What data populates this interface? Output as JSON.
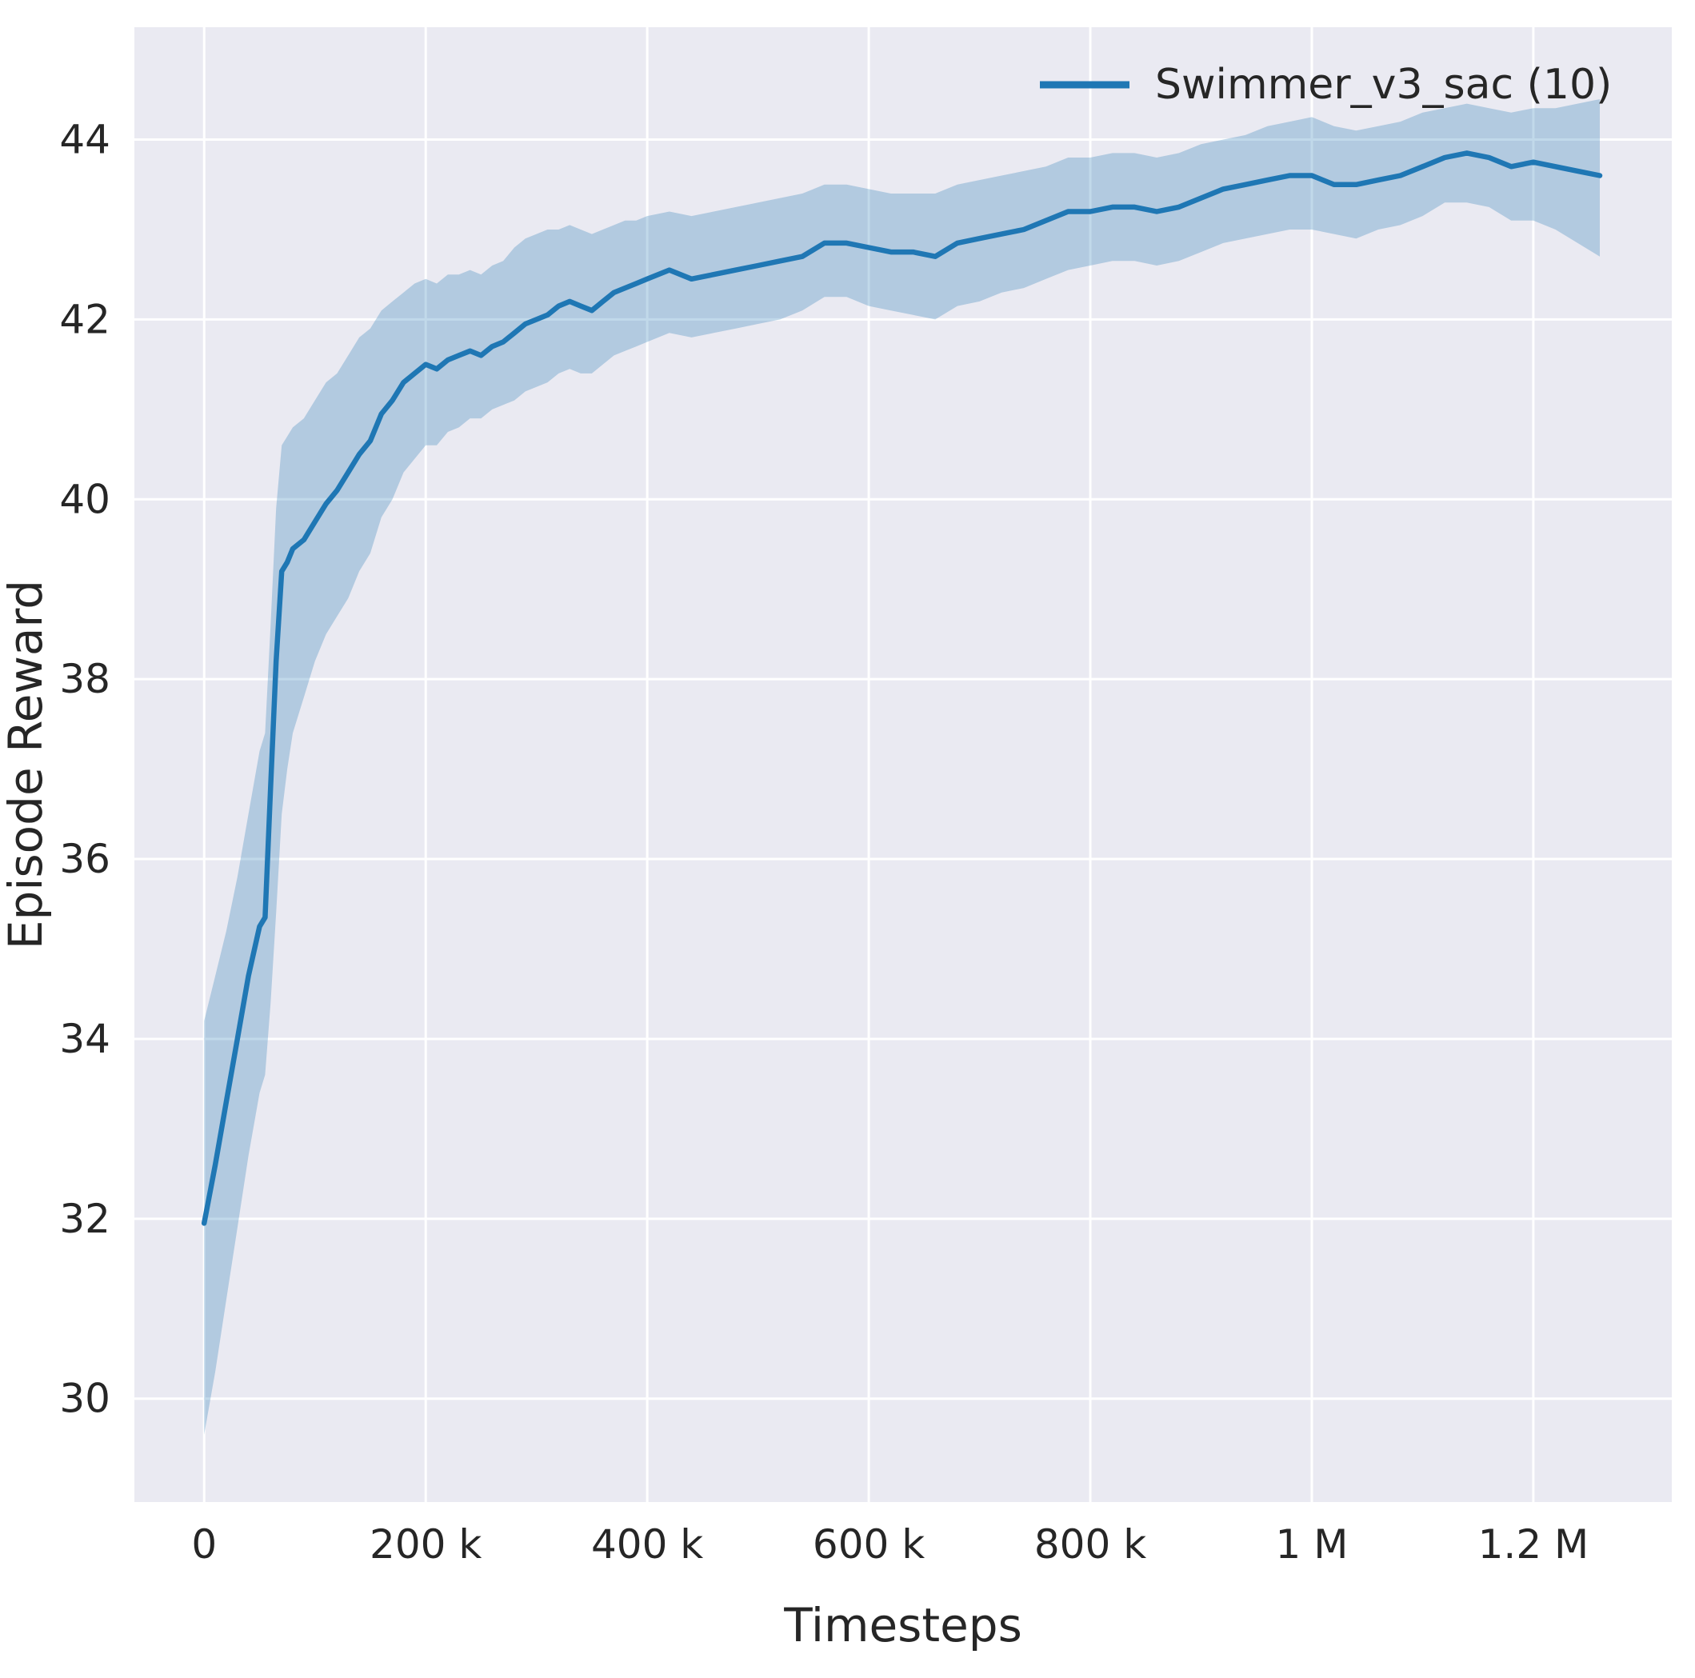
{
  "figure": {
    "background": "#ffffff"
  },
  "chart_data": {
    "type": "line",
    "title": "",
    "xlabel": "Timesteps",
    "ylabel": "Episode Reward",
    "legend_label": "Swimmer_v3_sac (10)",
    "legend_position": "upper right",
    "grid": true,
    "background": "#eaeaf2",
    "grid_color": "#ffffff",
    "line_color": "#1f77b4",
    "band_color": "#1f77b4",
    "band_opacity": 0.28,
    "tick_color": "#262626",
    "xlim": [
      -63000,
      1325000
    ],
    "ylim": [
      28.85,
      45.25
    ],
    "xticks": [
      {
        "value": 0,
        "label": "0"
      },
      {
        "value": 200000,
        "label": "200 k"
      },
      {
        "value": 400000,
        "label": "400 k"
      },
      {
        "value": 600000,
        "label": "600 k"
      },
      {
        "value": 800000,
        "label": "800 k"
      },
      {
        "value": 1000000,
        "label": "1 M"
      },
      {
        "value": 1200000,
        "label": "1.2 M"
      }
    ],
    "yticks": [
      {
        "value": 30,
        "label": "30"
      },
      {
        "value": 32,
        "label": "32"
      },
      {
        "value": 34,
        "label": "34"
      },
      {
        "value": 36,
        "label": "36"
      },
      {
        "value": 38,
        "label": "38"
      },
      {
        "value": 40,
        "label": "40"
      },
      {
        "value": 42,
        "label": "42"
      },
      {
        "value": 44,
        "label": "44"
      }
    ],
    "series": [
      {
        "name": "Swimmer_v3_sac (10)",
        "x": [
          0,
          10000,
          20000,
          30000,
          40000,
          50000,
          55000,
          60000,
          65000,
          70000,
          75000,
          80000,
          90000,
          100000,
          110000,
          120000,
          130000,
          140000,
          150000,
          160000,
          170000,
          180000,
          190000,
          200000,
          210000,
          220000,
          230000,
          240000,
          250000,
          260000,
          270000,
          280000,
          290000,
          300000,
          310000,
          320000,
          330000,
          340000,
          350000,
          360000,
          370000,
          380000,
          390000,
          400000,
          420000,
          440000,
          460000,
          480000,
          500000,
          520000,
          540000,
          560000,
          580000,
          600000,
          620000,
          640000,
          660000,
          680000,
          700000,
          720000,
          740000,
          760000,
          780000,
          800000,
          820000,
          840000,
          860000,
          880000,
          900000,
          920000,
          940000,
          960000,
          980000,
          1000000,
          1020000,
          1040000,
          1060000,
          1080000,
          1100000,
          1120000,
          1140000,
          1160000,
          1180000,
          1200000,
          1220000,
          1240000,
          1260000
        ],
        "mean": [
          31.95,
          32.6,
          33.3,
          34.0,
          34.7,
          35.25,
          35.35,
          36.8,
          38.2,
          39.2,
          39.3,
          39.45,
          39.55,
          39.75,
          39.95,
          40.1,
          40.3,
          40.5,
          40.65,
          40.95,
          41.1,
          41.3,
          41.4,
          41.5,
          41.45,
          41.55,
          41.6,
          41.65,
          41.6,
          41.7,
          41.75,
          41.85,
          41.95,
          42.0,
          42.05,
          42.15,
          42.2,
          42.15,
          42.1,
          42.2,
          42.3,
          42.35,
          42.4,
          42.45,
          42.55,
          42.45,
          42.5,
          42.55,
          42.6,
          42.65,
          42.7,
          42.85,
          42.85,
          42.8,
          42.75,
          42.75,
          42.7,
          42.85,
          42.9,
          42.95,
          43.0,
          43.1,
          43.2,
          43.2,
          43.25,
          43.25,
          43.2,
          43.25,
          43.35,
          43.45,
          43.5,
          43.55,
          43.6,
          43.6,
          43.5,
          43.5,
          43.55,
          43.6,
          43.7,
          43.8,
          43.85,
          43.8,
          43.7,
          43.75,
          43.7,
          43.65,
          43.6
        ],
        "band_lower": [
          29.6,
          30.3,
          31.1,
          31.9,
          32.7,
          33.4,
          33.6,
          34.4,
          35.4,
          36.5,
          37.0,
          37.4,
          37.8,
          38.2,
          38.5,
          38.7,
          38.9,
          39.2,
          39.4,
          39.8,
          40.0,
          40.3,
          40.45,
          40.6,
          40.6,
          40.75,
          40.8,
          40.9,
          40.9,
          41.0,
          41.05,
          41.1,
          41.2,
          41.25,
          41.3,
          41.4,
          41.45,
          41.4,
          41.4,
          41.5,
          41.6,
          41.65,
          41.7,
          41.75,
          41.85,
          41.8,
          41.85,
          41.9,
          41.95,
          42.0,
          42.1,
          42.25,
          42.25,
          42.15,
          42.1,
          42.05,
          42.0,
          42.15,
          42.2,
          42.3,
          42.35,
          42.45,
          42.55,
          42.6,
          42.65,
          42.65,
          42.6,
          42.65,
          42.75,
          42.85,
          42.9,
          42.95,
          43.0,
          43.0,
          42.95,
          42.9,
          43.0,
          43.05,
          43.15,
          43.3,
          43.3,
          43.25,
          43.1,
          43.1,
          43.0,
          42.85,
          42.7
        ],
        "band_upper": [
          34.2,
          34.7,
          35.2,
          35.8,
          36.5,
          37.2,
          37.4,
          38.6,
          39.9,
          40.6,
          40.7,
          40.8,
          40.9,
          41.1,
          41.3,
          41.4,
          41.6,
          41.8,
          41.9,
          42.1,
          42.2,
          42.3,
          42.4,
          42.45,
          42.4,
          42.5,
          42.5,
          42.55,
          42.5,
          42.6,
          42.65,
          42.8,
          42.9,
          42.95,
          43.0,
          43.0,
          43.05,
          43.0,
          42.95,
          43.0,
          43.05,
          43.1,
          43.1,
          43.15,
          43.2,
          43.15,
          43.2,
          43.25,
          43.3,
          43.35,
          43.4,
          43.5,
          43.5,
          43.45,
          43.4,
          43.4,
          43.4,
          43.5,
          43.55,
          43.6,
          43.65,
          43.7,
          43.8,
          43.8,
          43.85,
          43.85,
          43.8,
          43.85,
          43.95,
          44.0,
          44.05,
          44.15,
          44.2,
          44.25,
          44.15,
          44.1,
          44.15,
          44.2,
          44.3,
          44.35,
          44.4,
          44.35,
          44.3,
          44.35,
          44.35,
          44.4,
          44.45
        ]
      }
    ]
  }
}
